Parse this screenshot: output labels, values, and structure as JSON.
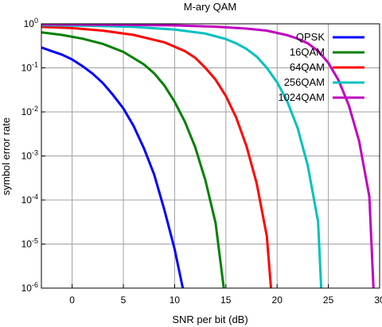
{
  "chart_data": {
    "type": "line",
    "title": "M-ary QAM",
    "xlabel": "SNR per bit (dB)",
    "ylabel": "symbol error rate",
    "xlim": [
      -3,
      30
    ],
    "ylim": [
      1e-06,
      1
    ],
    "y_scale": "log",
    "grid": true,
    "legend_position": "top-right",
    "x_ticks": [
      {
        "value": 0,
        "label": "0"
      },
      {
        "value": 5,
        "label": "5"
      },
      {
        "value": 10,
        "label": "10"
      },
      {
        "value": 15,
        "label": "15"
      },
      {
        "value": 20,
        "label": "20"
      },
      {
        "value": 25,
        "label": "25"
      },
      {
        "value": 30,
        "label": "30"
      }
    ],
    "y_ticks": [
      {
        "value": 1,
        "label_base": "10",
        "label_exp": "0"
      },
      {
        "value": 0.1,
        "label_base": "10",
        "label_exp": "-1"
      },
      {
        "value": 0.01,
        "label_base": "10",
        "label_exp": "-2"
      },
      {
        "value": 0.001,
        "label_base": "10",
        "label_exp": "-3"
      },
      {
        "value": 0.0001,
        "label_base": "10",
        "label_exp": "-4"
      },
      {
        "value": 1e-05,
        "label_base": "10",
        "label_exp": "-5"
      },
      {
        "value": 1e-06,
        "label_base": "10",
        "label_exp": "-6"
      }
    ],
    "series": [
      {
        "name": "QPSK",
        "color": "#0000ff",
        "x": [
          -3,
          -2,
          -1,
          0,
          1,
          2,
          3,
          4,
          5,
          6,
          7,
          8,
          9,
          10,
          10.8
        ],
        "y": [
          0.29,
          0.24,
          0.2,
          0.155,
          0.11,
          0.074,
          0.045,
          0.024,
          0.012,
          0.0048,
          0.0015,
          0.00038,
          6e-05,
          7.7e-06,
          1e-06
        ]
      },
      {
        "name": "16QAM",
        "color": "#008000",
        "x": [
          -3,
          -1,
          1,
          3,
          5,
          7,
          8,
          9,
          10,
          11,
          12,
          13,
          14,
          14.8
        ],
        "y": [
          0.64,
          0.56,
          0.46,
          0.35,
          0.23,
          0.12,
          0.075,
          0.04,
          0.017,
          0.006,
          0.0016,
          0.00028,
          3e-05,
          1e-06
        ]
      },
      {
        "name": "64QAM",
        "color": "#ff0000",
        "x": [
          -3,
          0,
          3,
          6,
          9,
          11,
          12,
          13,
          14,
          15,
          16,
          17,
          18,
          19,
          19.4
        ],
        "y": [
          0.85,
          0.8,
          0.7,
          0.56,
          0.38,
          0.24,
          0.17,
          0.1,
          0.054,
          0.023,
          0.0075,
          0.0017,
          0.00024,
          1.5e-05,
          1e-06
        ]
      },
      {
        "name": "256QAM",
        "color": "#00c0c0",
        "x": [
          -3,
          2,
          6,
          10,
          13,
          15,
          16,
          17,
          18,
          19,
          20,
          21,
          22,
          23,
          24,
          24.3
        ],
        "y": [
          0.93,
          0.9,
          0.85,
          0.74,
          0.6,
          0.45,
          0.36,
          0.27,
          0.18,
          0.1,
          0.047,
          0.017,
          0.0043,
          0.0006,
          3.2e-05,
          1e-06
        ]
      },
      {
        "name": "1024QAM",
        "color": "#c000c0",
        "x": [
          -3,
          5,
          10,
          14,
          17,
          19,
          21,
          22,
          23,
          24,
          25,
          26,
          27,
          28,
          29,
          29.4
        ],
        "y": [
          0.97,
          0.95,
          0.92,
          0.86,
          0.78,
          0.7,
          0.55,
          0.46,
          0.36,
          0.24,
          0.13,
          0.052,
          0.014,
          0.0022,
          0.00012,
          1e-06
        ]
      }
    ]
  }
}
